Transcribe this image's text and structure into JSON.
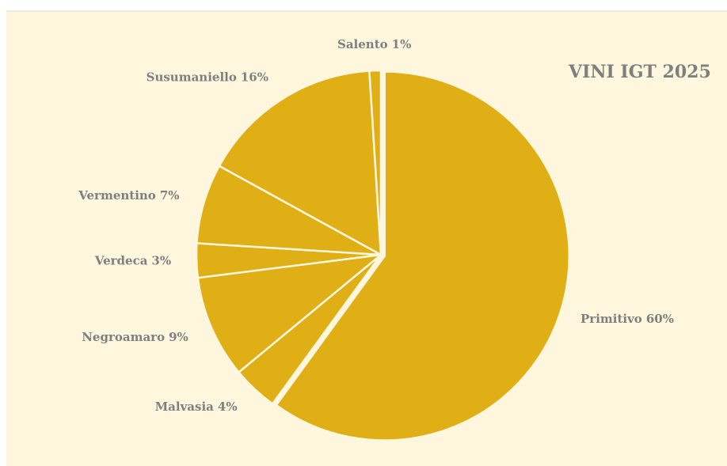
{
  "chart_data": {
    "type": "pie",
    "title": "VINI IGT 2025",
    "categories": [
      "Primitivo",
      "Malvasia",
      "Negroamaro",
      "Verdeca",
      "Vermentino",
      "Susumaniello",
      "Salento"
    ],
    "values": [
      60,
      4,
      9,
      3,
      7,
      16,
      1
    ],
    "value_labels": [
      "60%",
      "4%",
      "9%",
      "3%",
      "7%",
      "16%",
      "1%"
    ],
    "color": "#e0ae15"
  }
}
